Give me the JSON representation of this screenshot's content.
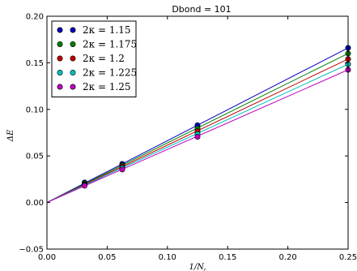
{
  "chart_data": {
    "type": "scatter",
    "title": "Dbond = 101",
    "xlabel": "1/N,",
    "ylabel": "ΔE",
    "xlim": [
      0.0,
      0.25
    ],
    "ylim": [
      -0.05,
      0.2
    ],
    "xticks": [
      0.0,
      0.05,
      0.1,
      0.15,
      0.2,
      0.25
    ],
    "yticks": [
      -0.05,
      0.0,
      0.05,
      0.1,
      0.15,
      0.2
    ],
    "xtick_labels": [
      "0.00",
      "0.05",
      "0.10",
      "0.15",
      "0.20",
      "0.25"
    ],
    "ytick_labels": [
      "−0.05",
      "0.00",
      "0.05",
      "0.10",
      "0.15",
      "0.20"
    ],
    "grid": false,
    "legend_position": "top-left",
    "x": [
      0.03125,
      0.0625,
      0.125,
      0.25
    ],
    "series": [
      {
        "name": "2κ = 1.15",
        "color": "#0000bf",
        "values": [
          0.0215,
          0.0415,
          0.083,
          0.166
        ],
        "fit": [
          0.0,
          0.664
        ]
      },
      {
        "name": "2κ = 1.175",
        "color": "#007f00",
        "values": [
          0.0205,
          0.0398,
          0.0795,
          0.16
        ],
        "fit": [
          0.0,
          0.64
        ]
      },
      {
        "name": "2κ = 1.2",
        "color": "#bf0000",
        "values": [
          0.0195,
          0.0385,
          0.0765,
          0.154
        ],
        "fit": [
          0.0,
          0.616
        ]
      },
      {
        "name": "2κ = 1.225",
        "color": "#00bfbf",
        "values": [
          0.0187,
          0.037,
          0.0735,
          0.1485
        ],
        "fit": [
          0.0,
          0.594
        ]
      },
      {
        "name": "2κ = 1.25",
        "color": "#bf00bf",
        "values": [
          0.018,
          0.0355,
          0.0705,
          0.1425
        ],
        "fit": [
          0.0,
          0.57
        ]
      }
    ]
  }
}
